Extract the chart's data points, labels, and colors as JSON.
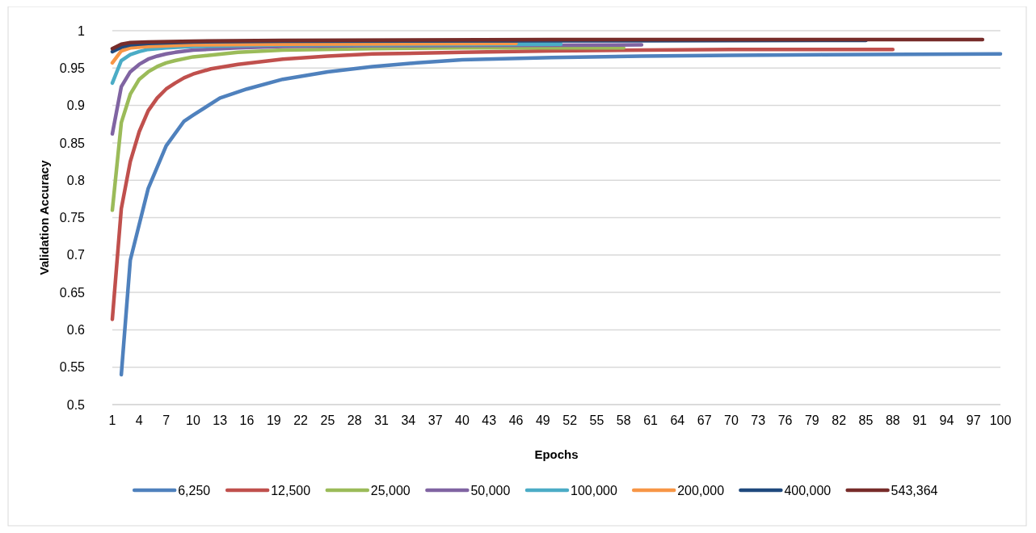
{
  "chart_data": {
    "type": "line",
    "xlabel": "Epochs",
    "ylabel": "Validation Accuracy",
    "xlim": [
      1,
      100
    ],
    "xticks": [
      1,
      4,
      7,
      10,
      13,
      16,
      19,
      22,
      25,
      28,
      31,
      34,
      37,
      40,
      43,
      46,
      49,
      52,
      55,
      58,
      61,
      64,
      67,
      70,
      73,
      76,
      79,
      82,
      85,
      88,
      91,
      94,
      97,
      100
    ],
    "ylim": [
      0.5,
      1
    ],
    "yticks": [
      0.5,
      0.55,
      0.6,
      0.65,
      0.7,
      0.75,
      0.8,
      0.85,
      0.9,
      0.95,
      1
    ],
    "grid": "y",
    "legend": "bottom",
    "marker": "none",
    "line_style": "solid",
    "series": [
      {
        "name": "6,250",
        "color": "#4f81bd",
        "x": [
          2,
          3,
          5,
          7,
          9,
          10,
          13,
          16,
          20,
          25,
          30,
          35,
          40,
          50,
          60,
          70,
          80,
          100
        ],
        "values": [
          0.54,
          0.693,
          0.789,
          0.846,
          0.879,
          0.887,
          0.91,
          0.922,
          0.935,
          0.945,
          0.952,
          0.957,
          0.961,
          0.964,
          0.966,
          0.967,
          0.968,
          0.969
        ]
      },
      {
        "name": "12,500",
        "color": "#c0504d",
        "x": [
          1,
          2,
          3,
          4,
          5,
          6,
          7,
          8,
          9,
          10,
          12,
          15,
          20,
          25,
          30,
          40,
          50,
          60,
          70,
          88
        ],
        "values": [
          0.614,
          0.762,
          0.825,
          0.865,
          0.893,
          0.91,
          0.922,
          0.93,
          0.937,
          0.942,
          0.949,
          0.955,
          0.962,
          0.966,
          0.969,
          0.971,
          0.973,
          0.974,
          0.975,
          0.975
        ]
      },
      {
        "name": "25,000",
        "color": "#9bbb59",
        "x": [
          1,
          2,
          3,
          4,
          5,
          6,
          7,
          8,
          10,
          15,
          20,
          30,
          40,
          58
        ],
        "values": [
          0.76,
          0.877,
          0.915,
          0.935,
          0.945,
          0.952,
          0.957,
          0.96,
          0.965,
          0.971,
          0.974,
          0.976,
          0.977,
          0.977
        ]
      },
      {
        "name": "50,000",
        "color": "#8064a2",
        "x": [
          1,
          2,
          3,
          4,
          5,
          6,
          7,
          8,
          10,
          15,
          20,
          30,
          60
        ],
        "values": [
          0.862,
          0.925,
          0.945,
          0.955,
          0.962,
          0.966,
          0.969,
          0.971,
          0.974,
          0.977,
          0.979,
          0.98,
          0.981
        ]
      },
      {
        "name": "100,000",
        "color": "#4bacc6",
        "x": [
          1,
          2,
          3,
          4,
          5,
          7,
          10,
          20,
          51
        ],
        "values": [
          0.93,
          0.96,
          0.968,
          0.972,
          0.975,
          0.977,
          0.979,
          0.981,
          0.982
        ]
      },
      {
        "name": "200,000",
        "color": "#f79646",
        "x": [
          1,
          2,
          3,
          5,
          10,
          20,
          46
        ],
        "values": [
          0.957,
          0.973,
          0.977,
          0.979,
          0.981,
          0.982,
          0.983
        ]
      },
      {
        "name": "400,000",
        "color": "#1f497d",
        "x": [
          1,
          2,
          3,
          5,
          10,
          20,
          85
        ],
        "values": [
          0.972,
          0.978,
          0.981,
          0.983,
          0.985,
          0.986,
          0.987
        ]
      },
      {
        "name": "543,364",
        "color": "#772c2a",
        "x": [
          1,
          2,
          3,
          5,
          10,
          20,
          50,
          98
        ],
        "values": [
          0.976,
          0.982,
          0.984,
          0.985,
          0.986,
          0.987,
          0.988,
          0.988
        ]
      }
    ]
  }
}
